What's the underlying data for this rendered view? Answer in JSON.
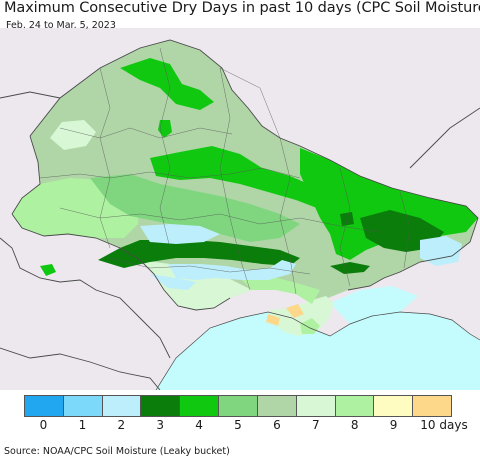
{
  "title": "Maximum Consecutive Dry Days in past 10 days (CPC Soil Moisture)",
  "date_range": "Feb. 24 to Mar. 5, 2023",
  "source": "Source: NOAA/CPC Soil Moisture (Leaky bucket)",
  "legend": {
    "colors": [
      "#21a7f0",
      "#7dd9fa",
      "#bdeefc",
      "#0b7d0b",
      "#11c811",
      "#7fd67f",
      "#b0d6a8",
      "#d8f8d5",
      "#aef2a1",
      "#fefcc0",
      "#fdd88a"
    ],
    "labels": [
      "0",
      "1",
      "2",
      "3",
      "4",
      "5",
      "6",
      "7",
      "8",
      "9",
      "10 days"
    ]
  },
  "map_colors": {
    "background_land": "#ece8ee",
    "sea": "#c4fcfe",
    "borders": "#4a4a4a"
  }
}
